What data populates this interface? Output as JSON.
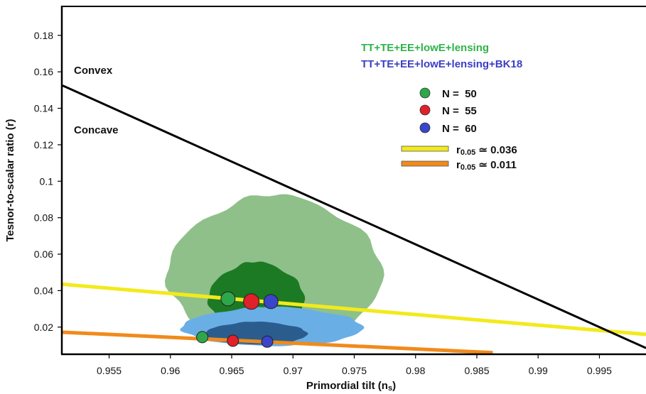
{
  "chart_data": {
    "type": "scatter",
    "xlabel": "Primordial tilt (n",
    "xlabel_sub": "s",
    "xlabel_end": ")",
    "ylabel": "Tesnor-to-scalar ratio (r)",
    "xlim": [
      0.9512,
      0.9988
    ],
    "ylim": [
      0.0055,
      0.1955
    ],
    "x_ticks": [
      {
        "value": 0.955,
        "label": "0.955"
      },
      {
        "value": 0.96,
        "label": "0.96"
      },
      {
        "value": 0.965,
        "label": "0.965"
      },
      {
        "value": 0.97,
        "label": "0.97"
      },
      {
        "value": 0.975,
        "label": "0.975"
      },
      {
        "value": 0.98,
        "label": "0.98"
      },
      {
        "value": 0.985,
        "label": "0.985"
      },
      {
        "value": 0.99,
        "label": "0.99"
      },
      {
        "value": 0.995,
        "label": "0.995"
      }
    ],
    "y_ticks": [
      {
        "value": 0.02,
        "label": "0.02"
      },
      {
        "value": 0.04,
        "label": "0.04"
      },
      {
        "value": 0.06,
        "label": "0.06"
      },
      {
        "value": 0.08,
        "label": "0.08"
      },
      {
        "value": 0.1,
        "label": "0.1"
      },
      {
        "value": 0.12,
        "label": "0.12"
      },
      {
        "value": 0.14,
        "label": "0.14"
      },
      {
        "value": 0.16,
        "label": "0.16"
      },
      {
        "value": 0.18,
        "label": "0.18"
      }
    ],
    "legend": {
      "datasets": [
        {
          "label": "TT+TE+EE+lowE+lensing",
          "color": "#2fb34a"
        },
        {
          "label": "TT+TE+EE+lowE+lensing+BK18",
          "color": "#3b3fc4"
        }
      ],
      "points": [
        {
          "label": "N =  50",
          "color": "#2ea64a"
        },
        {
          "label": "N =  55",
          "color": "#e0202a"
        },
        {
          "label": "N =  60",
          "color": "#3a45c9"
        }
      ],
      "lines": [
        {
          "prefix": "r",
          "subscript": "0.05",
          "suffix": " ≃ 0.036",
          "color": "#f2ea1c"
        },
        {
          "prefix": "r",
          "subscript": "0.05",
          "suffix": " ≃ 0.011",
          "color": "#f18a1a"
        }
      ]
    },
    "annotations": [
      {
        "text": "Convex",
        "x": 0.9525,
        "y": 0.156
      },
      {
        "text": "Concave",
        "x": 0.9525,
        "y": 0.128
      }
    ],
    "contours": [
      {
        "name": "green-68",
        "color": "#8fc08a",
        "center": [
          0.9685,
          0.052
        ],
        "width": 0.0175,
        "height": 0.082
      },
      {
        "name": "green-95",
        "color": "#1d7a24",
        "center": [
          0.967,
          0.037
        ],
        "width": 0.0078,
        "height": 0.038
      },
      {
        "name": "blue-95",
        "color": "#6aaee6",
        "center": [
          0.9683,
          0.0205
        ],
        "width": 0.0147,
        "height": 0.0215
      },
      {
        "name": "blue-68",
        "color": "#2a5d8e",
        "center": [
          0.967,
          0.0168
        ],
        "width": 0.0083,
        "height": 0.0125
      }
    ],
    "series": [
      {
        "name": "r0.05 ≃ 0.036",
        "type": "line",
        "color": "#f2ea1c",
        "x": [
          0.9512,
          0.9988
        ],
        "y": [
          0.0435,
          0.016
        ]
      },
      {
        "name": "r0.05 ≃ 0.011",
        "type": "line",
        "color": "#f18a1a",
        "x": [
          0.9512,
          0.9863
        ],
        "y": [
          0.0172,
          0.006
        ]
      },
      {
        "name": "Convex / Concave boundary",
        "type": "line",
        "color": "#000000",
        "x": [
          0.9512,
          0.9988
        ],
        "y": [
          0.1525,
          0.0085
        ]
      },
      {
        "name": "N =  50",
        "type": "scatter",
        "color": "#2ea64a",
        "x": [
          0.9647,
          0.9626
        ],
        "y": [
          0.0355,
          0.0145
        ]
      },
      {
        "name": "N =  55",
        "type": "scatter",
        "color": "#e0202a",
        "x": [
          0.9666,
          0.9651
        ],
        "y": [
          0.034,
          0.0125
        ]
      },
      {
        "name": "N =  60",
        "type": "scatter",
        "color": "#3a45c9",
        "x": [
          0.9682,
          0.9679
        ],
        "y": [
          0.034,
          0.012
        ]
      }
    ]
  }
}
